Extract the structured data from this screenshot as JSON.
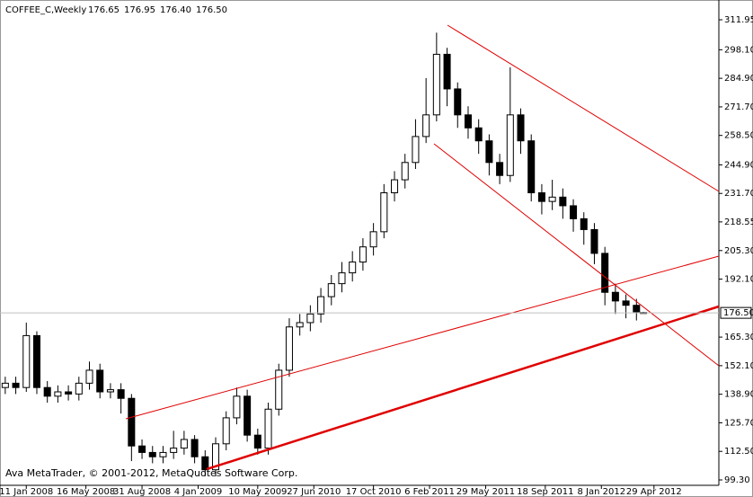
{
  "chart_data": {
    "type": "candlestick",
    "title": "COFFEE_C,Weekly",
    "last_quote": [
      "176.65",
      "176.95",
      "176.40",
      "176.50"
    ],
    "footer": "Ava MetaTrader, © 2001-2012, MetaQuotes Software Corp.",
    "x": [
      0,
      3,
      6,
      9,
      12,
      15,
      18,
      21,
      24,
      27,
      30,
      33,
      36,
      39,
      42,
      45,
      48,
      51,
      54,
      57,
      60,
      63,
      66,
      69,
      72,
      75,
      78,
      81,
      84,
      87,
      90,
      93,
      96,
      99,
      102,
      105,
      108,
      111,
      114,
      117,
      120,
      123,
      126,
      129,
      132,
      135,
      138,
      141,
      144,
      147,
      150,
      153,
      156,
      159,
      162,
      165,
      168,
      171,
      174,
      177,
      180,
      182
    ],
    "open": [
      142,
      144,
      142,
      166,
      142,
      138,
      140,
      139,
      144,
      150,
      140,
      141,
      137,
      115,
      112,
      110,
      112,
      114,
      118,
      110,
      104,
      116,
      128,
      138,
      120,
      114,
      132,
      150,
      170,
      172,
      176,
      184,
      190,
      195,
      200,
      207,
      214,
      232,
      238,
      246,
      258,
      268,
      296,
      280,
      268,
      262,
      256,
      246,
      240,
      268,
      256,
      232,
      228,
      230,
      226,
      220,
      215,
      204,
      186,
      182,
      180,
      176.65
    ],
    "high": [
      147,
      147,
      172,
      168,
      145,
      143,
      143,
      147,
      154,
      153,
      144,
      144,
      139,
      118,
      115,
      115,
      122,
      122,
      120,
      113,
      119,
      131,
      142,
      141,
      123,
      135,
      153,
      174,
      176,
      180,
      188,
      194,
      200,
      205,
      211,
      218,
      236,
      242,
      250,
      266,
      285,
      306,
      299,
      283,
      272,
      266,
      259,
      250,
      290,
      271,
      259,
      236,
      238,
      234,
      229,
      223,
      218,
      207,
      190,
      185,
      183,
      176.95
    ],
    "low": [
      139,
      139,
      140,
      139,
      135,
      135,
      136,
      136,
      141,
      137,
      137,
      130,
      108,
      109,
      107,
      107,
      109,
      111,
      107,
      101,
      101,
      113,
      125,
      117,
      111,
      111,
      129,
      147,
      166,
      168,
      172,
      180,
      186,
      191,
      196,
      203,
      211,
      228,
      234,
      243,
      255,
      265,
      272,
      262,
      257,
      250,
      240,
      236,
      237,
      250,
      228,
      222,
      224,
      220,
      214,
      208,
      199,
      180,
      176,
      174,
      173,
      176.4
    ],
    "close": [
      144,
      142,
      166,
      142,
      138,
      140,
      139,
      144,
      150,
      140,
      141,
      137,
      115,
      112,
      110,
      112,
      114,
      118,
      110,
      104,
      116,
      128,
      138,
      120,
      114,
      132,
      150,
      170,
      172,
      176,
      184,
      190,
      195,
      200,
      207,
      214,
      232,
      238,
      246,
      258,
      268,
      296,
      280,
      268,
      262,
      256,
      246,
      240,
      268,
      256,
      232,
      228,
      230,
      226,
      220,
      215,
      204,
      186,
      182,
      180,
      177,
      176.5
    ],
    "up_color": "#ffffff",
    "down_color": "#000000",
    "xlim": [
      -1.5,
      203.5
    ],
    "xticks": [
      {
        "value": 6,
        "label": "11 Jan 2008"
      },
      {
        "value": 23,
        "label": "16 May 2008"
      },
      {
        "value": 39,
        "label": "31 Aug 2008"
      },
      {
        "value": 55,
        "label": "4 Jan 2009"
      },
      {
        "value": 72,
        "label": "10 May 2009"
      },
      {
        "value": 88,
        "label": "27 Jun 2010"
      },
      {
        "value": 105,
        "label": "17 Oct 2010"
      },
      {
        "value": 121,
        "label": "6 Feb 2011"
      },
      {
        "value": 137,
        "label": "29 May 2011"
      },
      {
        "value": 154,
        "label": "18 Sep 2011"
      },
      {
        "value": 170,
        "label": "8 Jan 2012"
      },
      {
        "value": 185,
        "label": "29 Apr 2012"
      }
    ],
    "ylim": [
      96.81,
      321.09
    ],
    "yticks": [
      {
        "value": 99.3,
        "label": "99.30"
      },
      {
        "value": 112.5,
        "label": "112.50"
      },
      {
        "value": 125.7,
        "label": "125.70"
      },
      {
        "value": 138.9,
        "label": "138.90"
      },
      {
        "value": 152.1,
        "label": "152.10"
      },
      {
        "value": 165.3,
        "label": "165.30"
      },
      {
        "value": 192.1,
        "label": "192.10"
      },
      {
        "value": 205.3,
        "label": "205.30"
      },
      {
        "value": 218.55,
        "label": "218.55"
      },
      {
        "value": 231.7,
        "label": "231.70"
      },
      {
        "value": 244.9,
        "label": "244.90"
      },
      {
        "value": 258.5,
        "label": "258.50"
      },
      {
        "value": 271.7,
        "label": "271.70"
      },
      {
        "value": 284.9,
        "label": "284.90"
      },
      {
        "value": 298.1,
        "label": "298.10"
      },
      {
        "value": 311.95,
        "label": "311.95"
      }
    ]
  }
}
